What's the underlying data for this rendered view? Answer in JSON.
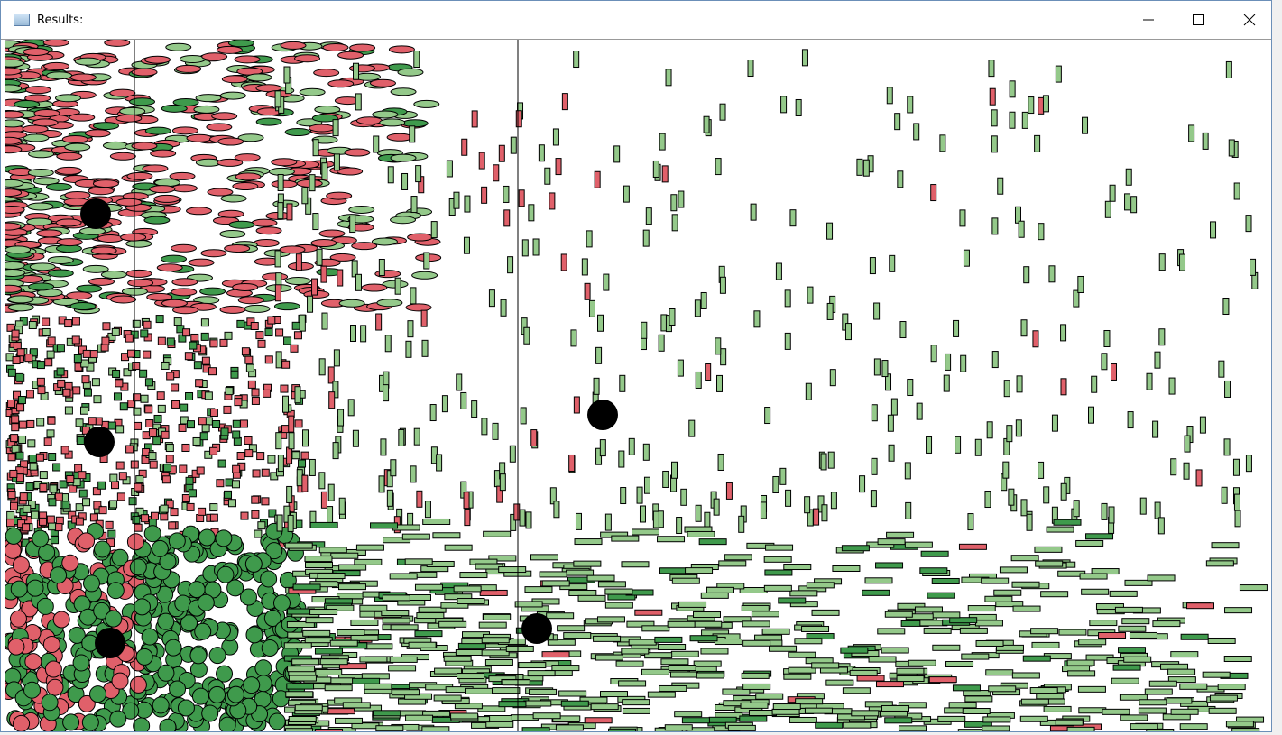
{
  "window": {
    "title": "Results:"
  }
}
